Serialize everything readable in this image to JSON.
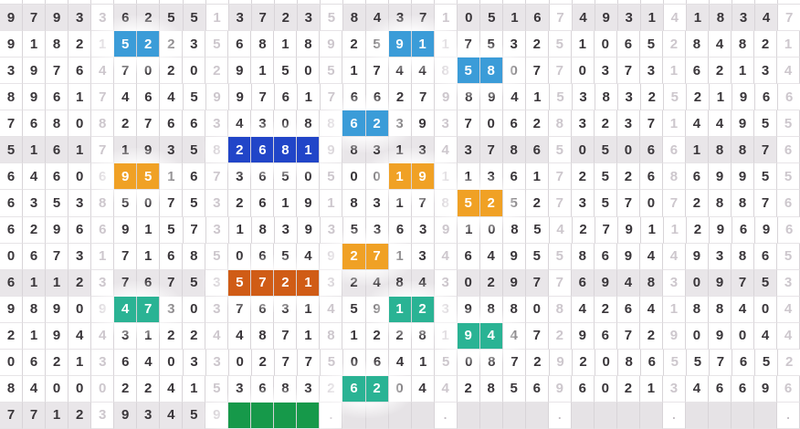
{
  "grid": {
    "columns": 35,
    "group_size": 4,
    "accent_colors": {
      "blue": "#3b9cd8",
      "dark_blue": "#2145c8",
      "orange": "#f0a125",
      "dark_orange": "#d05c16",
      "teal": "#2ab394",
      "green": "#16994a"
    },
    "cell_types": {
      "n": {
        "name": "digit-cell",
        "role": "normal digit"
      },
      "s": {
        "name": "separator-digit-cell",
        "role": "pale separator digit"
      },
      "b": {
        "name": "highlighted-digit-cell-blue",
        "bg": "#3b9cd8"
      },
      "B": {
        "name": "highlighted-digit-cell-dark-blue",
        "bg": "#2145c8"
      },
      "o": {
        "name": "highlighted-digit-cell-orange",
        "bg": "#f0a125"
      },
      "O": {
        "name": "highlighted-digit-cell-dark-orange",
        "bg": "#d05c16"
      },
      "t": {
        "name": "highlighted-digit-cell-teal",
        "bg": "#2ab394"
      },
      "g": {
        "name": "green-cell",
        "bg": "#16994a"
      },
      "e": {
        "name": "empty-cell"
      },
      "d": {
        "name": "dot-cell"
      }
    },
    "rows": [
      {
        "shaded": true,
        "digits": "97933625513723584371051674931418347",
        "types": "nnnnsnnnnsnnnnsnnnnsnnnnsnnnnsnnnns"
      },
      {
        "shaded": false,
        "digits": "91821522356818925911753251065284821",
        "types": "nnnnsbbnnsnnnnsnnbbsnnnnsnnnnsnnnns"
      },
      {
        "shaded": false,
        "digits": "39764702029150517448580770373162134",
        "types": "nnnnsnnnnsnnnnsnnnnsbbnnsnnnnsnnnns"
      },
      {
        "shaded": false,
        "digits": "89617464599761766279894153832521966",
        "types": "nnnnsnnnnsnnnnsnnnnsnnnnsnnnnsnnnns"
      },
      {
        "shaded": false,
        "digits": "76808276634308862393706283237144955",
        "types": "nnnnsnnnnsnnnnsbbnnsnnnnsnnnnsnnnns"
      },
      {
        "shaded": true,
        "digits": "51617193582681983134378650506618876",
        "types": "nnnnsnnnnsBBBBsnnnnsnnnnsnnnnsnnnns"
      },
      {
        "shaded": false,
        "digits": "64606951673650500191136172526869955",
        "types": "nnnnsoonnsnnnnsnnoosnnnnsnnnnsnnnns"
      },
      {
        "shaded": false,
        "digits": "63538507532619183178525273570728876",
        "types": "nnnnsnnnnsnnnnsnnnnsoonnsnnnnsnnnns"
      },
      {
        "shaded": false,
        "digits": "62966915731839353639108542791129696",
        "types": "nnnnsnnnnsnnnnsnnnnsnnnnsnnnnsnnnns"
      },
      {
        "shaded": false,
        "digits": "06731716850654927134649558694493865",
        "types": "nnnnsnnnnsnnnnsoonnsnnnnsnnnnsnnnns"
      },
      {
        "shaded": true,
        "digits": "61123767535721324843029776948309753",
        "types": "nnnnsnnnnsOOOOsnnnnsnnnnsnnnnsnnnns"
      },
      {
        "shaded": false,
        "digits": "98909473037631459123988084264188404",
        "types": "nnnnsttnnsnnnnsnnttsnnnnsnnnnsnnnns"
      },
      {
        "shaded": false,
        "digits": "21944312244871812281944729672909044",
        "types": "nnnnsnnnnsnnnnsnnnnsttnnsnnnnsnnnns"
      },
      {
        "shaded": false,
        "digits": "06213640330277506415087292086557652",
        "types": "nnnnsnnnnsnnnnsnnnnsnnnnsnnnnsnnnns"
      },
      {
        "shaded": false,
        "digits": "84000224153683262044285696021346696",
        "types": "nnnnsnnnnsnnnnsttnnsnnnnsnnnnsnnnns"
      },
      {
        "shaded": true,
        "digits": "7712393459    .    .    .    .    .",
        "types": "nnnnsnnnnsggggdeeeedeeeedeeeedeeeed"
      }
    ]
  }
}
